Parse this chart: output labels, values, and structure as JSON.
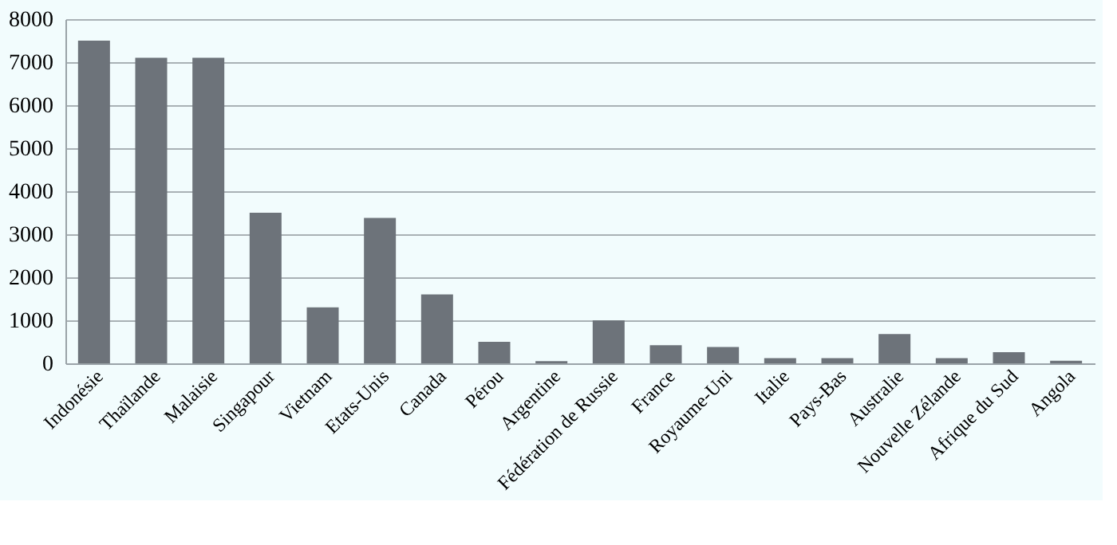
{
  "chart_data": {
    "type": "bar",
    "categories": [
      "Indonésie",
      "Thaïlande",
      "Malaisie",
      "Singapour",
      "Vietnam",
      "Etats-Unis",
      "Canada",
      "Pérou",
      "Argentine",
      "Fédération de Russie",
      "France",
      "Royaume-Uni",
      "Italie",
      "Pays-Bas",
      "Australie",
      "Nouvelle Zélande",
      "Afrique du Sud",
      "Angola"
    ],
    "values": [
      7500,
      7100,
      7100,
      3500,
      1300,
      3380,
      1600,
      500,
      50,
      1000,
      420,
      380,
      120,
      120,
      680,
      120,
      260,
      60
    ],
    "color": "#6d737a",
    "ylim": [
      0,
      8000
    ],
    "yticks": [
      0,
      1000,
      2000,
      3000,
      4000,
      5000,
      6000,
      7000,
      8000
    ],
    "grid": "y"
  }
}
